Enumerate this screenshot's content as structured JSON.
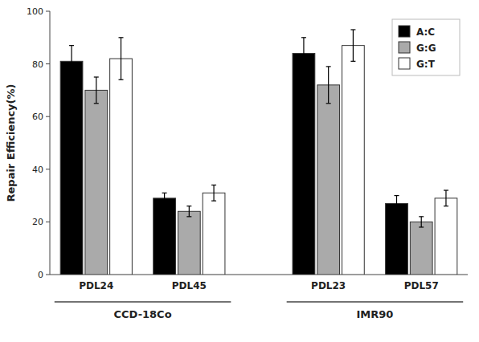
{
  "chart_data": {
    "type": "bar",
    "categories": [
      "PDL24",
      "PDL45",
      "PDL23",
      "PDL57"
    ],
    "series": [
      {
        "name": "A:C",
        "color": "#000000",
        "values": [
          81,
          29,
          84,
          27
        ],
        "errors": [
          6,
          2,
          6,
          3
        ]
      },
      {
        "name": "G:G",
        "color": "#aaaaaa",
        "values": [
          70,
          24,
          72,
          20
        ],
        "errors": [
          5,
          2,
          7,
          2
        ]
      },
      {
        "name": "G:T",
        "color": "#ffffff",
        "values": [
          82,
          31,
          87,
          29
        ],
        "errors": [
          8,
          3,
          6,
          3
        ]
      }
    ],
    "ylabel": "Repair Efficiency(%)",
    "annotations": [
      "CCD-18Co",
      "IMR90"
    ],
    "ylim": [
      0,
      100
    ],
    "yticks": [
      0,
      20,
      40,
      60,
      80,
      100
    ],
    "grid": false,
    "legend": "upper right"
  }
}
